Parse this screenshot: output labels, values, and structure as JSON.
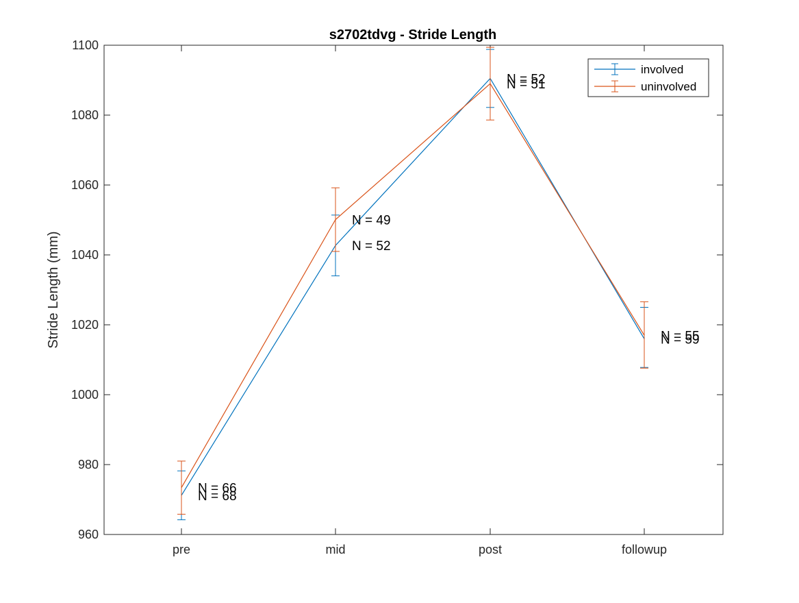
{
  "chart_data": {
    "type": "line",
    "title": "s2702tdvg - Stride Length",
    "xlabel": "",
    "ylabel": "Stride Length (mm)",
    "categories": [
      "pre",
      "mid",
      "post",
      "followup"
    ],
    "ylim": [
      960,
      1100
    ],
    "yticks": [
      960,
      980,
      1000,
      1020,
      1040,
      1060,
      1080,
      1100
    ],
    "grid": false,
    "legend_position": "top-right",
    "series": [
      {
        "name": "involved",
        "color": "#0072BD",
        "values": [
          971.2,
          1042.7,
          1090.5,
          1016.0
        ],
        "err_low": [
          964.2,
          1034.0,
          1082.2,
          1007.8
        ],
        "err_high": [
          978.2,
          1051.4,
          1098.8,
          1025.0
        ],
        "n_labels": [
          "N = 68",
          "N = 52",
          "N = 52",
          "N = 59"
        ]
      },
      {
        "name": "uninvolved",
        "color": "#D95319",
        "values": [
          973.4,
          1050.1,
          1089.0,
          1017.0
        ],
        "err_low": [
          965.8,
          1041.0,
          1078.6,
          1007.6
        ],
        "err_high": [
          981.0,
          1059.2,
          1099.4,
          1026.6
        ],
        "n_labels": [
          "N = 66",
          "N = 49",
          "N = 51",
          "N = 55"
        ]
      }
    ]
  }
}
